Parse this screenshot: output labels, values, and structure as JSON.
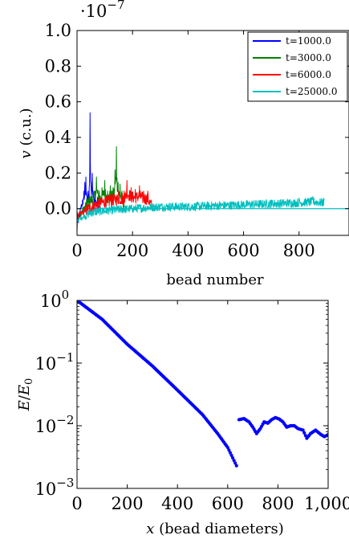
{
  "chart_data": [
    {
      "type": "line",
      "xlabel": "bead number",
      "ylabel": "v (c.u.)",
      "y_multiplier_text": "·10",
      "y_multiplier_exp": "−7",
      "xlim": [
        0,
        980
      ],
      "ylim": [
        -0.15,
        1.0
      ],
      "xticks": [
        0,
        200,
        400,
        600,
        800
      ],
      "yticks": [
        0.0,
        0.2,
        0.4,
        0.6,
        0.8,
        1.0
      ],
      "ytick_labels": [
        "0.0",
        "0.2",
        "0.4",
        "0.6",
        "0.8",
        "1.0"
      ],
      "grid": false,
      "legend_position": "top-right",
      "series": [
        {
          "name": "t=1000.0",
          "color": "#0000ff",
          "max_bead": 80,
          "points": [
            [
              0,
              -0.13
            ],
            [
              5,
              -0.08
            ],
            [
              10,
              -0.05
            ],
            [
              15,
              0.02
            ],
            [
              20,
              0.05
            ],
            [
              25,
              0.1
            ],
            [
              28,
              0.15
            ],
            [
              32,
              0.18
            ],
            [
              36,
              0.06
            ],
            [
              40,
              0.1
            ],
            [
              44,
              0.12
            ],
            [
              47,
              0.54
            ],
            [
              50,
              0.15
            ],
            [
              55,
              0.2
            ],
            [
              60,
              0.08
            ],
            [
              65,
              0.1
            ],
            [
              70,
              0.04
            ],
            [
              75,
              0.06
            ],
            [
              80,
              0.01
            ]
          ]
        },
        {
          "name": "t=3000.0",
          "color": "#008000",
          "max_bead": 170,
          "points": [
            [
              0,
              -0.1
            ],
            [
              15,
              -0.04
            ],
            [
              30,
              0.02
            ],
            [
              45,
              0.08
            ],
            [
              60,
              0.1
            ],
            [
              70,
              0.18
            ],
            [
              80,
              0.1
            ],
            [
              90,
              0.12
            ],
            [
              100,
              0.16
            ],
            [
              110,
              0.1
            ],
            [
              120,
              0.13
            ],
            [
              130,
              0.12
            ],
            [
              137,
              0.22
            ],
            [
              142,
              0.35
            ],
            [
              148,
              0.15
            ],
            [
              155,
              0.14
            ],
            [
              162,
              0.1
            ],
            [
              170,
              0.02
            ]
          ]
        },
        {
          "name": "t=6000.0",
          "color": "#ff0000",
          "max_bead": 270,
          "points": [
            [
              0,
              -0.08
            ],
            [
              30,
              -0.02
            ],
            [
              60,
              0.03
            ],
            [
              90,
              0.06
            ],
            [
              120,
              0.08
            ],
            [
              150,
              0.1
            ],
            [
              170,
              0.1
            ],
            [
              180,
              0.16
            ],
            [
              195,
              0.12
            ],
            [
              210,
              0.11
            ],
            [
              225,
              0.13
            ],
            [
              240,
              0.1
            ],
            [
              255,
              0.1
            ],
            [
              270,
              0.02
            ]
          ]
        },
        {
          "name": "t=25000.0",
          "color": "#00bfbf",
          "max_bead": 890,
          "points": [
            [
              0,
              -0.12
            ],
            [
              50,
              -0.04
            ],
            [
              100,
              -0.02
            ],
            [
              200,
              0.0
            ],
            [
              300,
              0.02
            ],
            [
              400,
              0.02
            ],
            [
              500,
              0.03
            ],
            [
              600,
              0.04
            ],
            [
              700,
              0.05
            ],
            [
              800,
              0.06
            ],
            [
              850,
              0.07
            ],
            [
              890,
              0.06
            ]
          ]
        }
      ]
    },
    {
      "type": "scatter",
      "xlabel_var": "x",
      "xlabel_rest": " (bead diameters)",
      "ylabel_var": "E",
      "ylabel_denom_var": "E",
      "ylabel_denom_sub": "0",
      "xlim": [
        0,
        1000
      ],
      "ylim": [
        0.001,
        1.0
      ],
      "y_scale": "log",
      "xticks": [
        0,
        200,
        400,
        600,
        800,
        1000
      ],
      "xtick_labels": [
        "0",
        "200",
        "400",
        "600",
        "800",
        "1,000"
      ],
      "ytick_base": "10",
      "ytick_exponents": [
        "0",
        "−1",
        "−2",
        "−3"
      ],
      "ytick_values": [
        1.0,
        0.1,
        0.01,
        0.001
      ],
      "grid": false,
      "color": "#0000ff",
      "segments": [
        [
          [
            0,
            1.0
          ],
          [
            100,
            0.5
          ],
          [
            200,
            0.2
          ],
          [
            300,
            0.09
          ],
          [
            400,
            0.037
          ],
          [
            500,
            0.015
          ],
          [
            560,
            0.0075
          ],
          [
            600,
            0.0045
          ],
          [
            635,
            0.0023
          ]
        ],
        [
          [
            645,
            0.0125
          ],
          [
            665,
            0.013
          ],
          [
            685,
            0.0115
          ],
          [
            700,
            0.0095
          ],
          [
            715,
            0.0075
          ],
          [
            730,
            0.009
          ],
          [
            745,
            0.0115
          ],
          [
            760,
            0.011
          ],
          [
            775,
            0.0125
          ],
          [
            790,
            0.0135
          ],
          [
            805,
            0.0128
          ],
          [
            820,
            0.0115
          ],
          [
            835,
            0.0095
          ],
          [
            850,
            0.01
          ],
          [
            865,
            0.01
          ],
          [
            880,
            0.009
          ],
          [
            900,
            0.0085
          ],
          [
            915,
            0.0063
          ],
          [
            930,
            0.0075
          ],
          [
            950,
            0.0085
          ],
          [
            970,
            0.0073
          ],
          [
            985,
            0.0067
          ],
          [
            1000,
            0.0072
          ]
        ]
      ]
    }
  ]
}
